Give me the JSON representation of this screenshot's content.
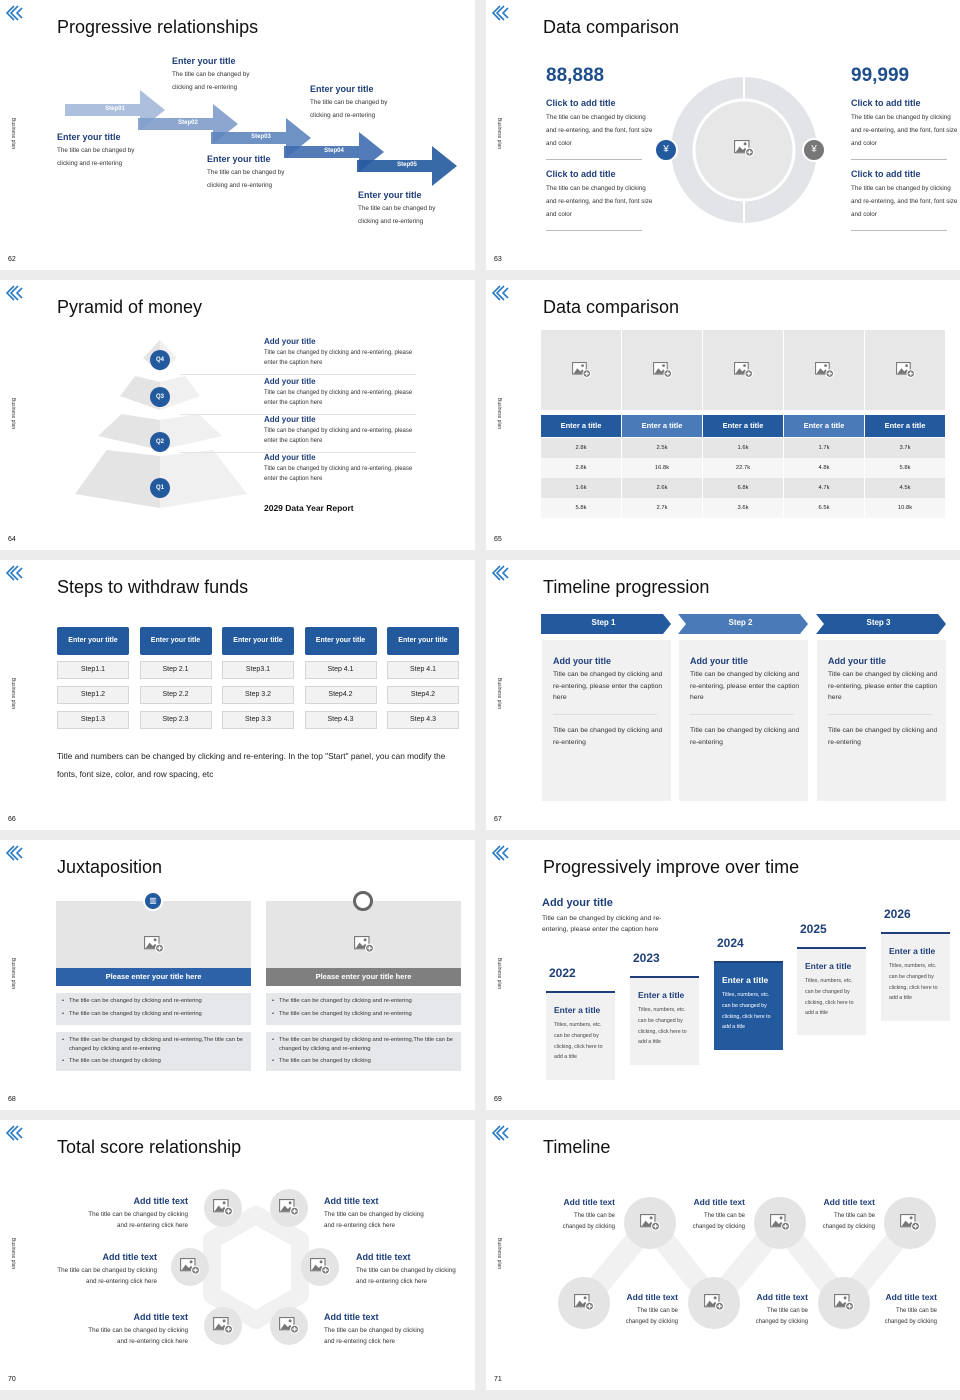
{
  "common": {
    "side_label": "Business plan"
  },
  "colors": {
    "brand_blue": "#235a9e",
    "title_blue": "#1f3f7a",
    "panel_gray": "#e6e6e8",
    "light_gray": "#f1f1f2"
  },
  "slides": [
    {
      "page": "62",
      "title": "Progressive relationships",
      "steps": [
        "Step01",
        "Step02",
        "Step03",
        "Step04",
        "Step05"
      ],
      "items": [
        {
          "title": "Enter your title",
          "body": "The title can be changed by clicking and re-entering"
        },
        {
          "title": "Enter your title",
          "body": "The title can be changed by clicking and re-entering"
        },
        {
          "title": "Enter your title",
          "body": "The title can be changed by clicking and re-entering"
        },
        {
          "title": "Enter your title",
          "body": "The title can be changed by clicking and re-entering"
        },
        {
          "title": "Enter your title",
          "body": "The title can be changed by clicking and re-entering"
        }
      ]
    },
    {
      "page": "63",
      "title": "Data comparison",
      "left": {
        "number": "88,888",
        "items": [
          {
            "title": "Click to add title",
            "body": "The title can be changed by clicking and re-entering, and the font, font size and color"
          },
          {
            "title": "Click to add title",
            "body": "The title can be changed by clicking and re-entering, and the font, font size and color"
          }
        ],
        "icon": "yen-hand-icon"
      },
      "right": {
        "number": "99,999",
        "items": [
          {
            "title": "Click to add title",
            "body": "The title can be changed by clicking and re-entering, and the font, font size and color"
          },
          {
            "title": "Click to add title",
            "body": "The title can be changed by clicking and re-entering, and the font, font size and color"
          }
        ],
        "icon": "money-bag-icon"
      }
    },
    {
      "page": "64",
      "title": "Pyramid of money",
      "levels": [
        "Q4",
        "Q3",
        "Q2",
        "Q1"
      ],
      "items": [
        {
          "title": "Add your title",
          "body": "Title can be changed by clicking and re-entering, please enter the caption here"
        },
        {
          "title": "Add your title",
          "body": "Title can be changed by clicking and re-entering, please enter the caption here"
        },
        {
          "title": "Add your title",
          "body": "Title can be changed by clicking and re-entering, please enter the caption here"
        },
        {
          "title": "Add your title",
          "body": "Title can be changed by clicking and re-entering, please enter the caption here"
        }
      ],
      "report": "2029 Data Year Report"
    },
    {
      "page": "65",
      "title": "Data comparison",
      "headers": [
        "Enter a title",
        "Enter a title",
        "Enter a title",
        "Enter a title",
        "Enter a title"
      ],
      "rows": [
        [
          "2.8k",
          "2.5k",
          "1.6k",
          "1.7k",
          "3.7k"
        ],
        [
          "2.8k",
          "16.8k",
          "22.7k",
          "4.8k",
          "5.8k"
        ],
        [
          "1.6k",
          "2.6k",
          "6.8k",
          "4.7k",
          "4.5k"
        ],
        [
          "5.8k",
          "2.7k",
          "3.6k",
          "6.5k",
          "10.8k"
        ]
      ]
    },
    {
      "page": "66",
      "title": "Steps to withdraw funds",
      "columns": [
        {
          "header": "Enter your title",
          "steps": [
            "Step1.1",
            "Step1.2",
            "Step1.3"
          ]
        },
        {
          "header": "Enter your title",
          "steps": [
            "Step 2.1",
            "Step 2.2",
            "Step 2.3"
          ]
        },
        {
          "header": "Enter your title",
          "steps": [
            "Step3.1",
            "Step 3.2",
            "Step 3.3"
          ]
        },
        {
          "header": "Enter your title",
          "steps": [
            "Step 4.1",
            "Step4.2",
            "Step 4.3"
          ]
        },
        {
          "header": "Enter your title",
          "steps": [
            "Step 4.1",
            "Step4.2",
            "Step 4.3"
          ]
        }
      ],
      "note": "Title and numbers can be changed by clicking and re-entering. In the top \"Start\" panel, you can modify the fonts, font size, color, and row spacing, etc"
    },
    {
      "page": "67",
      "title": "Timeline progression",
      "steps": [
        {
          "label": "Step 1",
          "title": "Add your title",
          "body": "Title can be changed by clicking and re-entering, please enter the caption here",
          "body2": "Title can be changed by clicking and re-entering"
        },
        {
          "label": "Step 2",
          "title": "Add your title",
          "body": "Title can be changed by clicking and re-entering, please enter the caption here",
          "body2": "Title can be changed by clicking and re-entering"
        },
        {
          "label": "Step 3",
          "title": "Add your title",
          "body": "Title can be changed by clicking and re-entering, please enter the caption here",
          "body2": "Title can be changed by clicking and re-entering"
        }
      ]
    },
    {
      "page": "68",
      "title": "Juxtaposition",
      "panels": [
        {
          "icon": "bar-chart-icon",
          "heading": "Please enter your title here",
          "bullets1": [
            "The title can be changed by clicking and re-entering",
            "The title can be changed by clicking and re-entering"
          ],
          "bullets2": [
            "The title can be changed by clicking and re-entering,The title can be changed by clicking and re-entering",
            "The title can be changed by clicking"
          ]
        },
        {
          "icon": "pie-chart-icon",
          "heading": "Please enter your title here",
          "bullets1": [
            "The title can be changed by clicking and re-entering",
            "The title can be changed by clicking and re-entering"
          ],
          "bullets2": [
            "The title can be changed by clicking and re-entering,The title can be changed by clicking and re-entering",
            "The title can be changed by clicking"
          ]
        }
      ]
    },
    {
      "page": "69",
      "title": "Progressively improve over time",
      "intro": {
        "title": "Add your title",
        "body": "Title can be changed by clicking and re-entering, please enter the caption here"
      },
      "years": [
        {
          "year": "2022",
          "title": "Enter a title",
          "body": "Titles, numbers, etc. can be changed by clicking, click here to add a title"
        },
        {
          "year": "2023",
          "title": "Enter a title",
          "body": "Titles, numbers, etc. can be changed by clicking, click here to add a title"
        },
        {
          "year": "2024",
          "title": "Enter a title",
          "body": "Titles, numbers, etc. can be changed by clicking, click here to add a title",
          "highlighted": true
        },
        {
          "year": "2025",
          "title": "Enter a title",
          "body": "Titles, numbers, etc. can be changed by clicking, click here to add a title"
        },
        {
          "year": "2026",
          "title": "Enter a title",
          "body": "Titles, numbers, etc. can be changed by clicking, click here to add a title"
        }
      ]
    },
    {
      "page": "70",
      "title": "Total score relationship",
      "items": [
        {
          "title": "Add title text",
          "body": "The title can be changed by clicking and re-entering click here"
        },
        {
          "title": "Add title text",
          "body": "The title can be changed by clicking and re-entering click here"
        },
        {
          "title": "Add title text",
          "body": "The title can be changed by clicking and re-entering click here"
        },
        {
          "title": "Add title text",
          "body": "The title can be changed by clicking and re-entering click here"
        },
        {
          "title": "Add title text",
          "body": "The title can be changed by clicking and re-entering click here"
        },
        {
          "title": "Add title text",
          "body": "The title can be changed by clicking and re-entering click here"
        }
      ]
    },
    {
      "page": "71",
      "title": "Timeline",
      "items": [
        {
          "title": "Add title text",
          "body": "The title can be changed by clicking"
        },
        {
          "title": "Add title text",
          "body": "The title can be changed by clicking"
        },
        {
          "title": "Add title text",
          "body": "The title can be changed by clicking"
        },
        {
          "title": "Add title text",
          "body": "The title can be changed by clicking"
        },
        {
          "title": "Add title text",
          "body": "The title can be changed by clicking"
        },
        {
          "title": "Add title text",
          "body": "The title can be changed by clicking"
        }
      ]
    }
  ]
}
